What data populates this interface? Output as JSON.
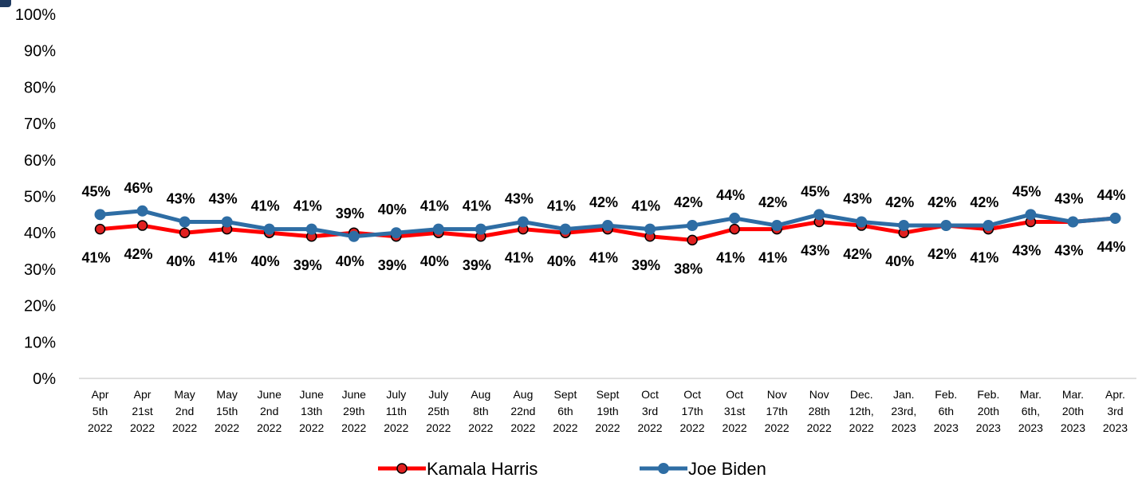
{
  "chart_data": {
    "type": "line",
    "title": "",
    "xlabel": "",
    "ylabel": "",
    "ylim": [
      0,
      100
    ],
    "yticks": [
      "0%",
      "10%",
      "20%",
      "30%",
      "40%",
      "50%",
      "60%",
      "70%",
      "80%",
      "90%",
      "100%"
    ],
    "categories": [
      [
        "Apr",
        "5th",
        "2022"
      ],
      [
        "Apr",
        "21st",
        "2022"
      ],
      [
        "May",
        "2nd",
        "2022"
      ],
      [
        "May",
        "15th",
        "2022"
      ],
      [
        "June",
        "2nd",
        "2022"
      ],
      [
        "June",
        "13th",
        "2022"
      ],
      [
        "June",
        "29th",
        "2022"
      ],
      [
        "July",
        "11th",
        "2022"
      ],
      [
        "July",
        "25th",
        "2022"
      ],
      [
        "Aug",
        "8th",
        "2022"
      ],
      [
        "Aug",
        "22nd",
        "2022"
      ],
      [
        "Sept",
        "6th",
        "2022"
      ],
      [
        "Sept",
        "19th",
        "2022"
      ],
      [
        "Oct",
        "3rd",
        "2022"
      ],
      [
        "Oct",
        "17th",
        "2022"
      ],
      [
        "Oct",
        "31st",
        "2022"
      ],
      [
        "Nov",
        "17th",
        "2022"
      ],
      [
        "Nov",
        "28th",
        "2022"
      ],
      [
        "Dec.",
        "12th,",
        "2022"
      ],
      [
        "Jan.",
        "23rd,",
        "2023"
      ],
      [
        "Feb.",
        "6th",
        "2023"
      ],
      [
        "Feb.",
        "20th",
        "2023"
      ],
      [
        "Mar.",
        "6th,",
        "2023"
      ],
      [
        "Mar.",
        "20th",
        "2023"
      ],
      [
        "Apr.",
        "3rd",
        "2023"
      ]
    ],
    "series": [
      {
        "name": "Kamala Harris",
        "color": "#ff0000",
        "marker_color": "#e02020",
        "values": [
          41,
          42,
          40,
          41,
          40,
          39,
          40,
          39,
          40,
          39,
          41,
          40,
          41,
          39,
          38,
          41,
          41,
          43,
          42,
          40,
          42,
          41,
          43,
          43,
          44
        ],
        "labels": [
          "41%",
          "42%",
          "40%",
          "41%",
          "40%",
          "39%",
          "40%",
          "39%",
          "40%",
          "39%",
          "41%",
          "40%",
          "41%",
          "39%",
          "38%",
          "41%",
          "41%",
          "43%",
          "42%",
          "40%",
          "42%",
          "41%",
          "43%",
          "43%",
          "44%"
        ]
      },
      {
        "name": "Joe Biden",
        "color": "#2e6da4",
        "marker_color": "#2e6da4",
        "values": [
          45,
          46,
          43,
          43,
          41,
          41,
          39,
          40,
          41,
          41,
          43,
          41,
          42,
          41,
          42,
          44,
          42,
          45,
          43,
          42,
          42,
          42,
          45,
          43,
          44
        ],
        "labels": [
          "45%",
          "46%",
          "43%",
          "43%",
          "41%",
          "41%",
          "39%",
          "40%",
          "41%",
          "41%",
          "43%",
          "41%",
          "42%",
          "41%",
          "42%",
          "44%",
          "42%",
          "45%",
          "43%",
          "42%",
          "42%",
          "42%",
          "45%",
          "43%",
          "44%"
        ]
      }
    ],
    "legend_position": "bottom",
    "grid": false
  }
}
